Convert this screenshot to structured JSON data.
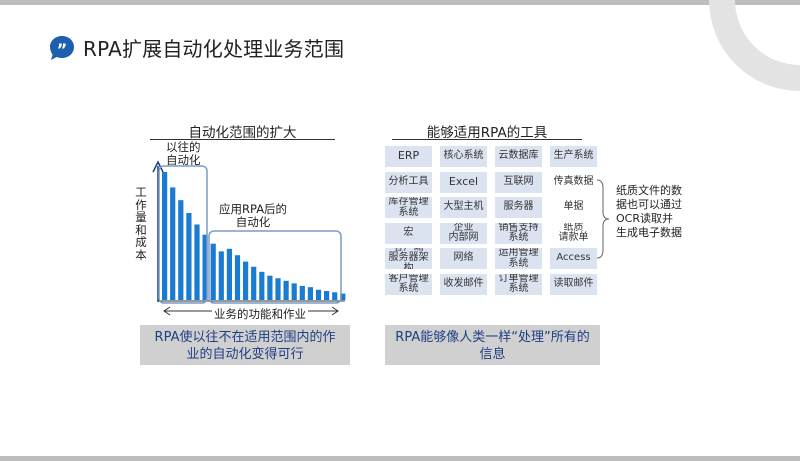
{
  "title": "RPA扩展自动化处理业务范围",
  "left": {
    "heading": "自动化范围的扩大",
    "ylabel": "工作量和成本",
    "xlabel": "业务的功能和作业",
    "past_label": "以往的\n自动化",
    "after_label": "应用RPA后的\n自动化",
    "caption": "RPA使以往不在适用范围内的作\n业的自动化变得可行"
  },
  "right": {
    "heading": "能够适用RPA的工具",
    "tools": [
      [
        "ERP",
        "核心系统",
        "云数据库",
        "生产系统"
      ],
      [
        "分析工具",
        "Excel",
        "互联网",
        "传真数据"
      ],
      [
        "库存管理\n系统",
        "大型主机",
        "服务器",
        "单据"
      ],
      [
        "宏",
        "企业\n内部网",
        "销售支持\n系统",
        "纸质\n请款单"
      ],
      [
        "客户端\n服务器架构",
        "网络",
        "运用管理\n系统",
        "Access"
      ],
      [
        "客户管理\n系统",
        "收发邮件",
        "订单管理\n系统",
        "读取邮件"
      ]
    ],
    "plain_cells": [
      "传真数据",
      "单据",
      "纸质\n请款单"
    ],
    "note": "纸质文件的数\n据也可以通过\nOCR读取并\n生成电子数据",
    "caption": "RPA能够像人类一样“处理”所有的\n信息"
  },
  "colors": {
    "accent": "#1f5fb0",
    "bar": "#1a7bd1",
    "tile": "#dbe3f1",
    "caption_bg": "#d0d0d0",
    "caption_text": "#1f3e84"
  },
  "chart_data": {
    "type": "bar",
    "description_free": true,
    "values": [
      100,
      88,
      78,
      68,
      59,
      51,
      44,
      38,
      40,
      35,
      30,
      26,
      22,
      19,
      17,
      15,
      13,
      11,
      10,
      8,
      7,
      6,
      5
    ],
    "past_count": 6,
    "ylabel": "工作量和成本",
    "xlabel": "业务的功能和作业"
  }
}
